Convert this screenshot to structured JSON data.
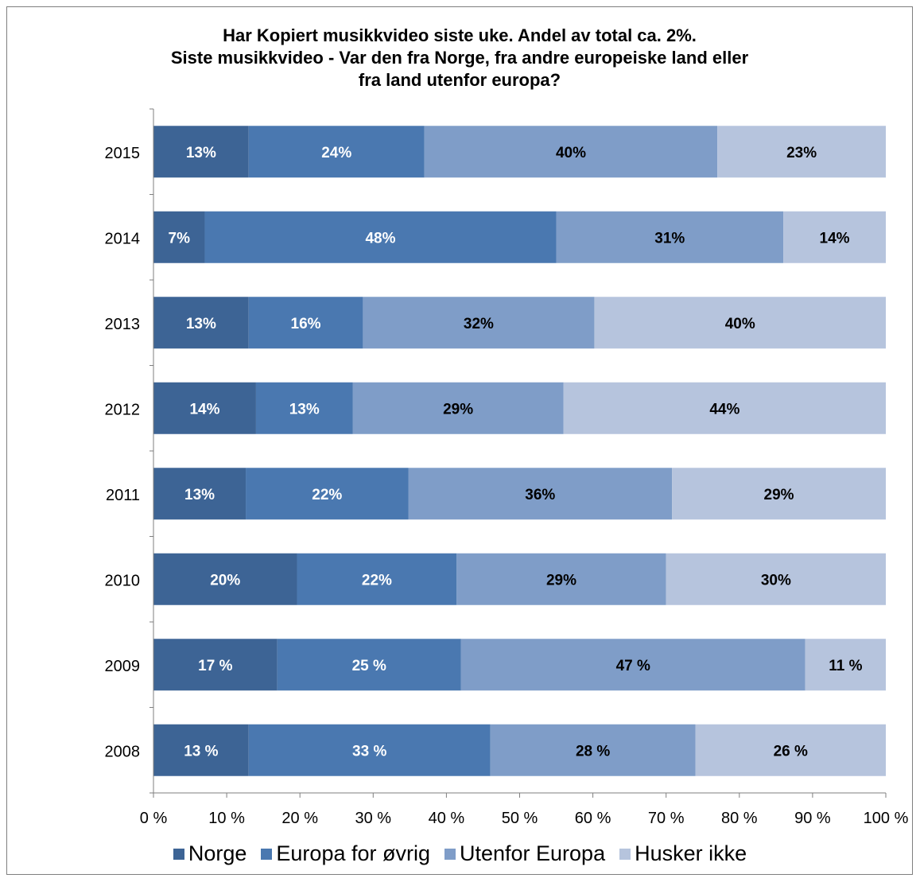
{
  "chart_data": {
    "type": "bar",
    "orientation": "horizontal",
    "stacked": true,
    "title": [
      "Har Kopiert musikkvideo siste uke. Andel av total ca. 2%.",
      "Siste musikkvideo - Var den fra Norge, fra andre europeiske land eller",
      "fra land utenfor europa?"
    ],
    "categories": [
      "2015",
      "2014",
      "2013",
      "2012",
      "2011",
      "2010",
      "2009",
      "2008"
    ],
    "series": [
      {
        "name": "Norge",
        "color": "#3d6495",
        "values": [
          13,
          7,
          13,
          14,
          12.6,
          19.6,
          16.9,
          13
        ],
        "labels": [
          "13%",
          "7%",
          "13%",
          "14%",
          "13%",
          "20%",
          "17 %",
          "13 %"
        ]
      },
      {
        "name": "Europa for øvrig",
        "color": "#4a78b0",
        "values": [
          24,
          48,
          15.6,
          13.2,
          22.2,
          21.8,
          25.1,
          33
        ],
        "labels": [
          "24%",
          "48%",
          "16%",
          "13%",
          "22%",
          "22%",
          "25 %",
          "33 %"
        ]
      },
      {
        "name": "Utenfor Europa",
        "color": "#7f9dc8",
        "values": [
          40,
          31,
          31.6,
          28.8,
          36,
          28.6,
          47,
          28
        ],
        "labels": [
          "40%",
          "31%",
          "32%",
          "29%",
          "36%",
          "29%",
          "47 %",
          "28 %"
        ]
      },
      {
        "name": "Husker ikke",
        "color": "#b6c4dd",
        "values": [
          23,
          14,
          39.8,
          44,
          29.2,
          30,
          11,
          26
        ],
        "labels": [
          "23%",
          "14%",
          "40%",
          "44%",
          "29%",
          "30%",
          "11 %",
          "26 %"
        ]
      }
    ],
    "xlim": [
      0,
      100
    ],
    "xticks": [
      "0 %",
      "10 %",
      "20 %",
      "30 %",
      "40 %",
      "50 %",
      "60 %",
      "70 %",
      "80 %",
      "90 %",
      "100 %"
    ],
    "grid": false,
    "legend_position": "bottom"
  }
}
